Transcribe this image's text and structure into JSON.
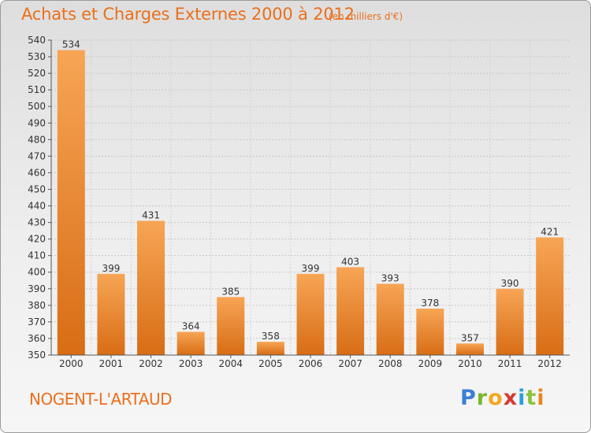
{
  "header": {
    "title": "Achats et Charges Externes 2000 à 2012",
    "unit": "(en milliers d'€)"
  },
  "footer": {
    "place": "NOGENT-L'ARTAUD",
    "brand_letters": [
      "P",
      "r",
      "o",
      "x",
      "i",
      "t",
      "i"
    ]
  },
  "colors": {
    "bar_top": "#f7a555",
    "bar_bottom": "#d86d15",
    "title": "#ea6f1c"
  },
  "chart_data": {
    "type": "bar",
    "title": "Achats et Charges Externes 2000 à 2012",
    "subtitle": "(en milliers d'€)",
    "categories": [
      "2000",
      "2001",
      "2002",
      "2003",
      "2004",
      "2005",
      "2006",
      "2007",
      "2008",
      "2009",
      "2010",
      "2011",
      "2012"
    ],
    "values": [
      534,
      399,
      431,
      364,
      385,
      358,
      399,
      403,
      393,
      378,
      357,
      390,
      421
    ],
    "ylim": [
      350,
      540
    ],
    "ytick_step": 10,
    "grid": true,
    "legend": "none"
  }
}
